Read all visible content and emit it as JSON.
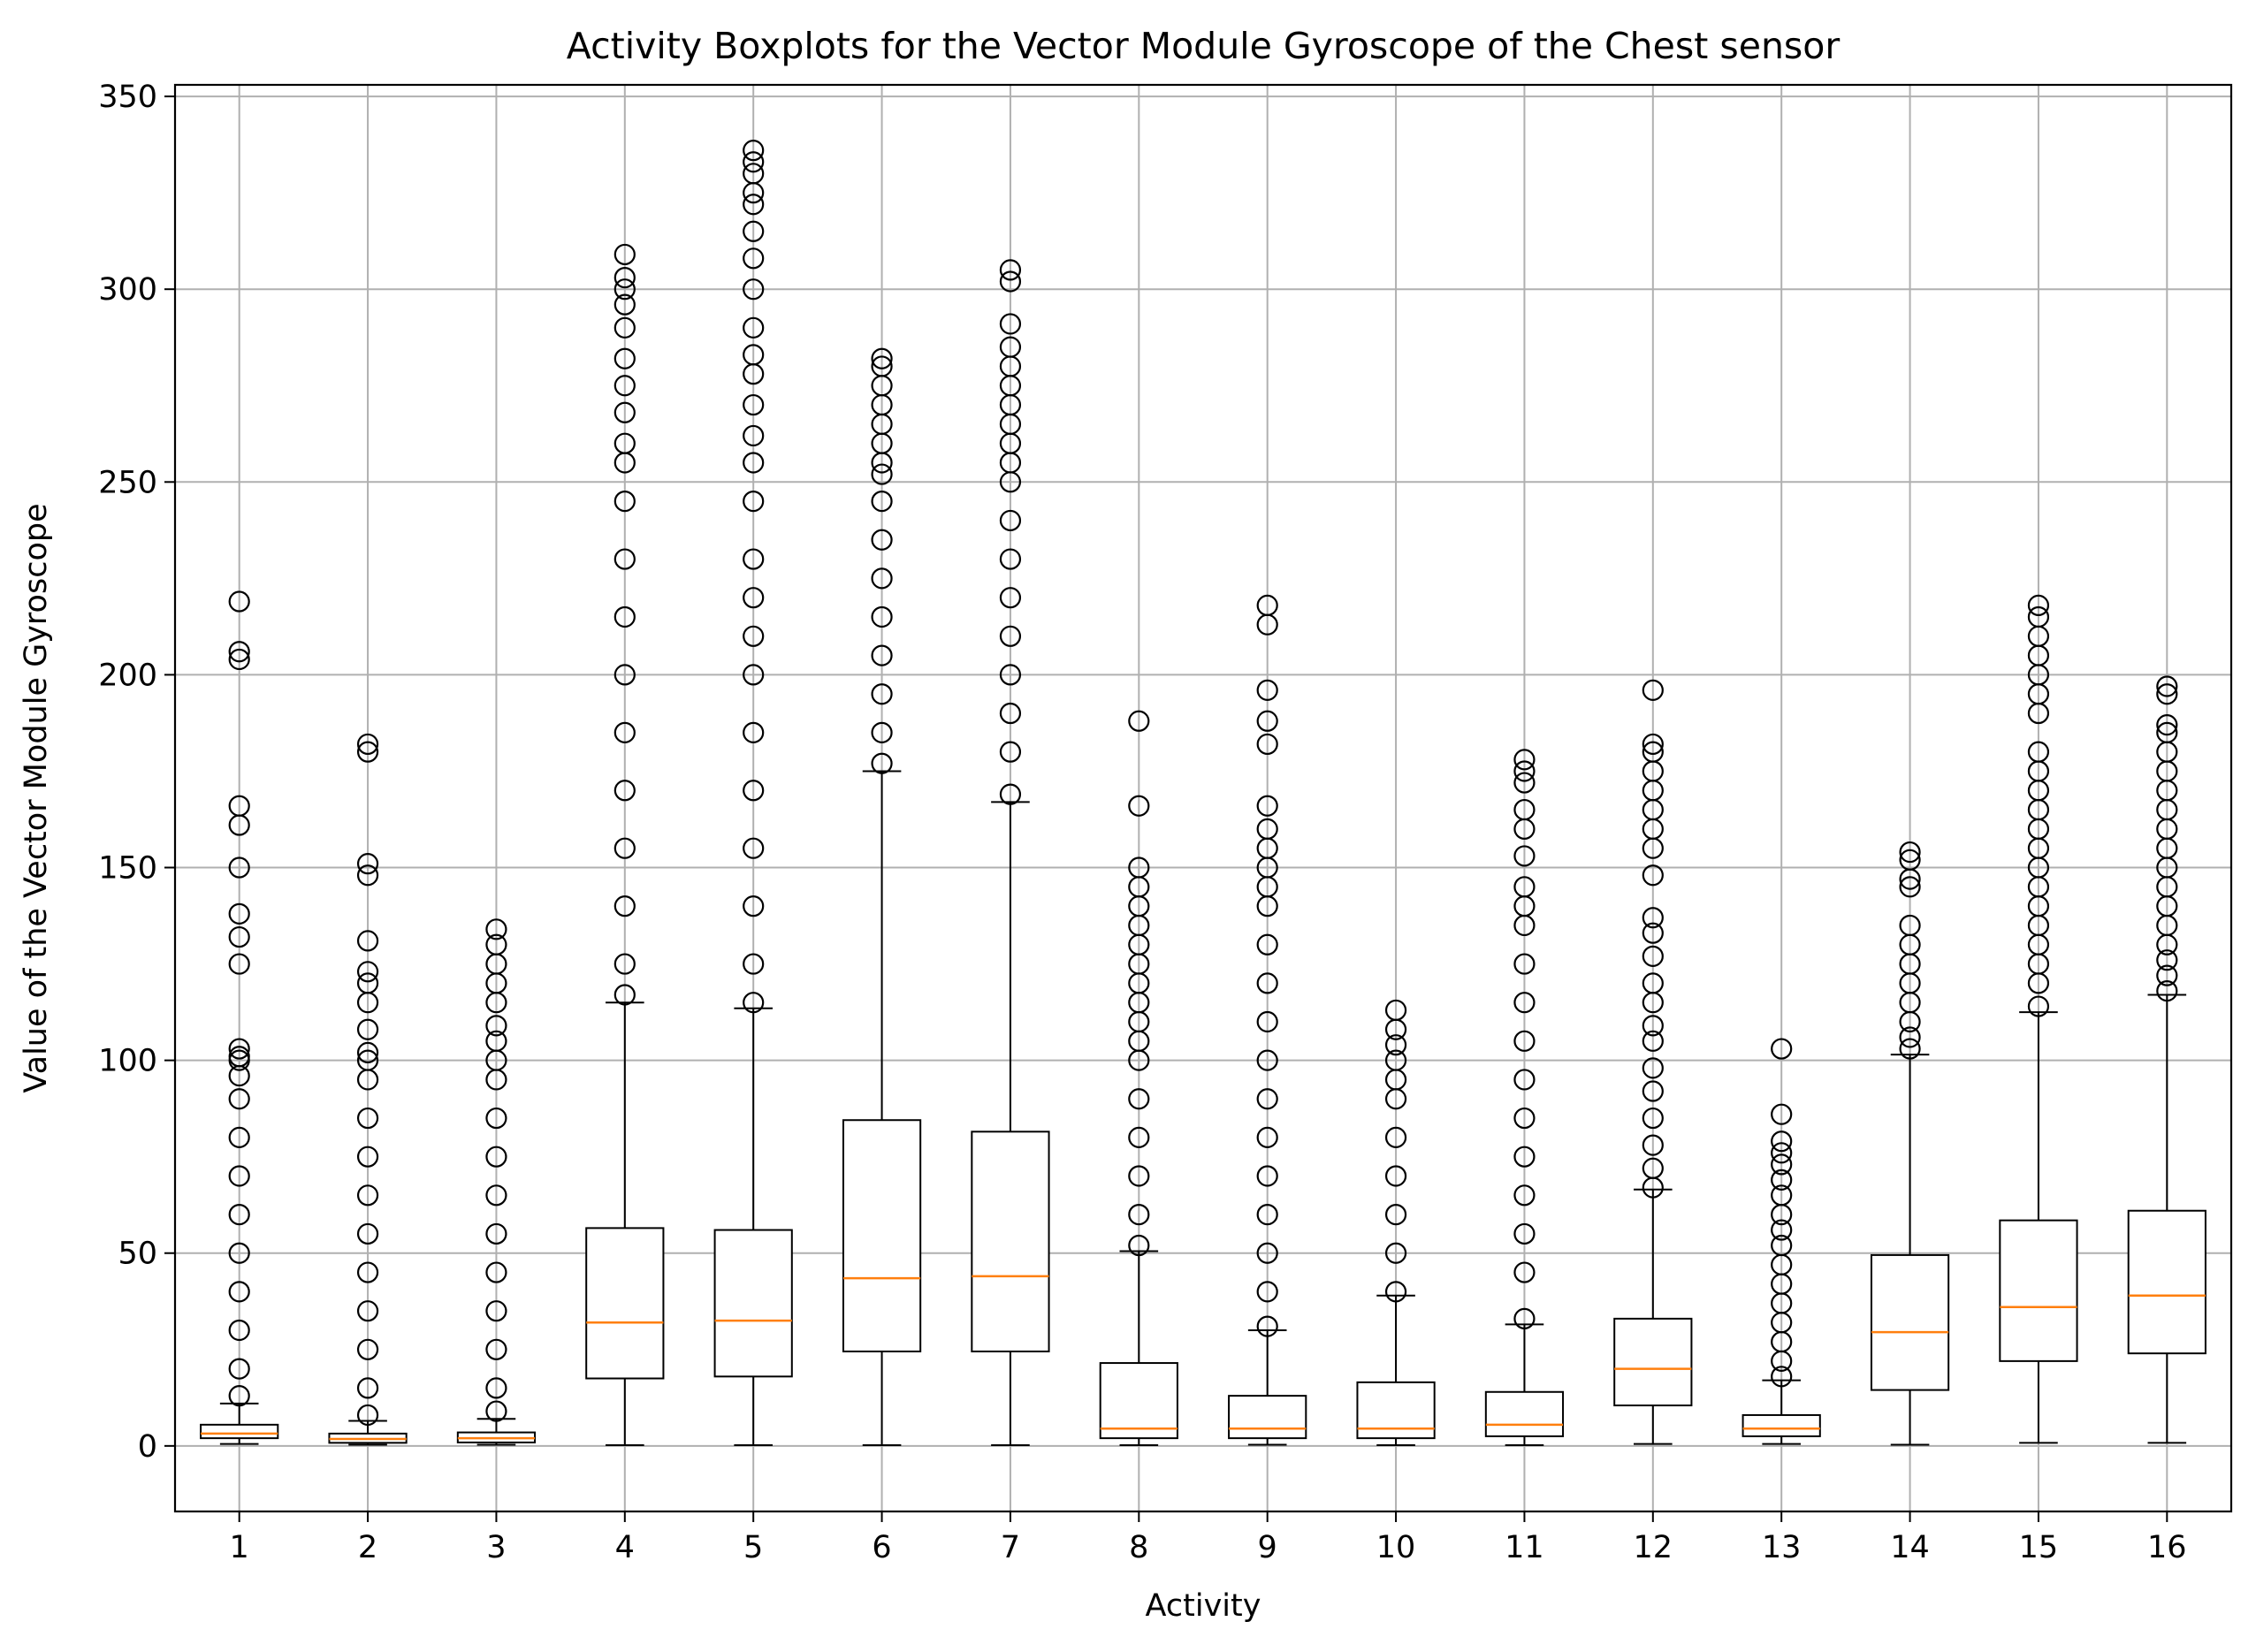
{
  "chart_data": {
    "type": "boxplot",
    "title": "Activity Boxplots for the Vector Module Gyroscope of the Chest sensor",
    "xlabel": "Activity",
    "ylabel": "Value of the Vector Module Gyroscope",
    "ylim": [
      -17,
      353
    ],
    "yticks": [
      0,
      50,
      100,
      150,
      200,
      250,
      300,
      350
    ],
    "grid": true,
    "colors": {
      "box": "#000000",
      "median": "#ff7f0e",
      "grid": "#b0b0b0"
    },
    "categories": [
      "1",
      "2",
      "3",
      "4",
      "5",
      "6",
      "7",
      "8",
      "9",
      "10",
      "11",
      "12",
      "13",
      "14",
      "15",
      "16"
    ],
    "boxes": [
      {
        "label": "1",
        "whisker_low": 0.5,
        "q1": 2.0,
        "median": 3.2,
        "q3": 5.5,
        "whisker_high": 11.0,
        "outliers": [
          13,
          20,
          30,
          40,
          50,
          60,
          70,
          80,
          90,
          96,
          100,
          101,
          103,
          125,
          132,
          138,
          150,
          161,
          166,
          204,
          206,
          219
        ]
      },
      {
        "label": "2",
        "whisker_low": 0.3,
        "q1": 0.8,
        "median": 1.8,
        "q3": 3.2,
        "whisker_high": 6.5,
        "outliers": [
          8,
          15,
          25,
          35,
          45,
          55,
          65,
          75,
          85,
          95,
          100,
          102,
          108,
          115,
          120,
          123,
          131,
          148,
          151,
          180,
          182
        ]
      },
      {
        "label": "3",
        "whisker_low": 0.3,
        "q1": 0.9,
        "median": 2.0,
        "q3": 3.5,
        "whisker_high": 7.0,
        "outliers": [
          9,
          15,
          25,
          35,
          45,
          55,
          65,
          75,
          85,
          95,
          100,
          105,
          109,
          115,
          120,
          125,
          130,
          134
        ]
      },
      {
        "label": "4",
        "whisker_low": 0.2,
        "q1": 17.5,
        "median": 32.0,
        "q3": 56.5,
        "whisker_high": 115.0,
        "outliers": [
          117,
          125,
          140,
          155,
          170,
          185,
          200,
          215,
          230,
          245,
          255,
          260,
          268,
          275,
          282,
          290,
          296,
          300,
          303,
          309
        ]
      },
      {
        "label": "5",
        "whisker_low": 0.2,
        "q1": 18.0,
        "median": 32.5,
        "q3": 56.0,
        "whisker_high": 113.5,
        "outliers": [
          115,
          125,
          140,
          155,
          170,
          185,
          200,
          210,
          220,
          230,
          245,
          255,
          262,
          270,
          278,
          283,
          290,
          300,
          308,
          315,
          322,
          325,
          330,
          333,
          336
        ]
      },
      {
        "label": "6",
        "whisker_low": 0.2,
        "q1": 24.5,
        "median": 43.5,
        "q3": 84.5,
        "whisker_high": 175.0,
        "outliers": [
          177,
          185,
          195,
          205,
          215,
          225,
          235,
          245,
          252,
          255,
          260,
          265,
          270,
          275,
          280,
          282
        ]
      },
      {
        "label": "7",
        "whisker_low": 0.2,
        "q1": 24.5,
        "median": 44.0,
        "q3": 81.5,
        "whisker_high": 167.0,
        "outliers": [
          169,
          180,
          190,
          200,
          210,
          220,
          230,
          240,
          250,
          255,
          260,
          265,
          270,
          275,
          280,
          285,
          291,
          302,
          305
        ]
      },
      {
        "label": "8",
        "whisker_low": 0.2,
        "q1": 2.0,
        "median": 4.5,
        "q3": 21.5,
        "whisker_high": 50.5,
        "outliers": [
          52,
          60,
          70,
          80,
          90,
          100,
          105,
          110,
          115,
          120,
          125,
          130,
          135,
          140,
          145,
          150,
          166,
          188
        ]
      },
      {
        "label": "9",
        "whisker_low": 0.3,
        "q1": 2.0,
        "median": 4.5,
        "q3": 13.0,
        "whisker_high": 30.0,
        "outliers": [
          31,
          40,
          50,
          60,
          70,
          80,
          90,
          100,
          110,
          120,
          130,
          140,
          145,
          150,
          155,
          160,
          166,
          182,
          188,
          196,
          213,
          218
        ]
      },
      {
        "label": "10",
        "whisker_low": 0.2,
        "q1": 2.0,
        "median": 4.5,
        "q3": 16.5,
        "whisker_high": 39.0,
        "outliers": [
          40,
          50,
          60,
          70,
          80,
          90,
          95,
          100,
          104,
          108,
          113
        ]
      },
      {
        "label": "11",
        "whisker_low": 0.2,
        "q1": 2.5,
        "median": 5.5,
        "q3": 14.0,
        "whisker_high": 31.5,
        "outliers": [
          33,
          45,
          55,
          65,
          75,
          85,
          95,
          105,
          115,
          125,
          135,
          140,
          145,
          153,
          160,
          165,
          172,
          175,
          178
        ]
      },
      {
        "label": "12",
        "whisker_low": 0.5,
        "q1": 10.5,
        "median": 20.0,
        "q3": 33.0,
        "whisker_high": 66.5,
        "outliers": [
          67,
          72,
          78,
          85,
          92,
          98,
          105,
          109,
          115,
          120,
          127,
          133,
          137,
          148,
          155,
          160,
          165,
          170,
          175,
          180,
          182,
          196
        ]
      },
      {
        "label": "13",
        "whisker_low": 0.5,
        "q1": 2.5,
        "median": 4.5,
        "q3": 8.0,
        "whisker_high": 17.0,
        "outliers": [
          18,
          22,
          27,
          32,
          37,
          42,
          47,
          52,
          56,
          60,
          65,
          69,
          73,
          76,
          79,
          86,
          103
        ]
      },
      {
        "label": "14",
        "whisker_low": 0.3,
        "q1": 14.5,
        "median": 29.5,
        "q3": 49.5,
        "whisker_high": 101.5,
        "outliers": [
          103,
          106,
          110,
          115,
          120,
          125,
          130,
          135,
          145,
          147,
          152,
          154
        ]
      },
      {
        "label": "15",
        "whisker_low": 0.8,
        "q1": 22.0,
        "median": 36.0,
        "q3": 58.5,
        "whisker_high": 112.5,
        "outliers": [
          114,
          120,
          125,
          130,
          135,
          140,
          145,
          150,
          155,
          160,
          165,
          170,
          175,
          180,
          190,
          195,
          200,
          205,
          210,
          215,
          218
        ]
      },
      {
        "label": "16",
        "whisker_low": 0.8,
        "q1": 24.0,
        "median": 39.0,
        "q3": 61.0,
        "whisker_high": 117.0,
        "outliers": [
          118,
          122,
          126,
          130,
          135,
          140,
          145,
          150,
          155,
          160,
          165,
          170,
          175,
          180,
          185,
          187,
          195,
          197
        ]
      }
    ]
  }
}
